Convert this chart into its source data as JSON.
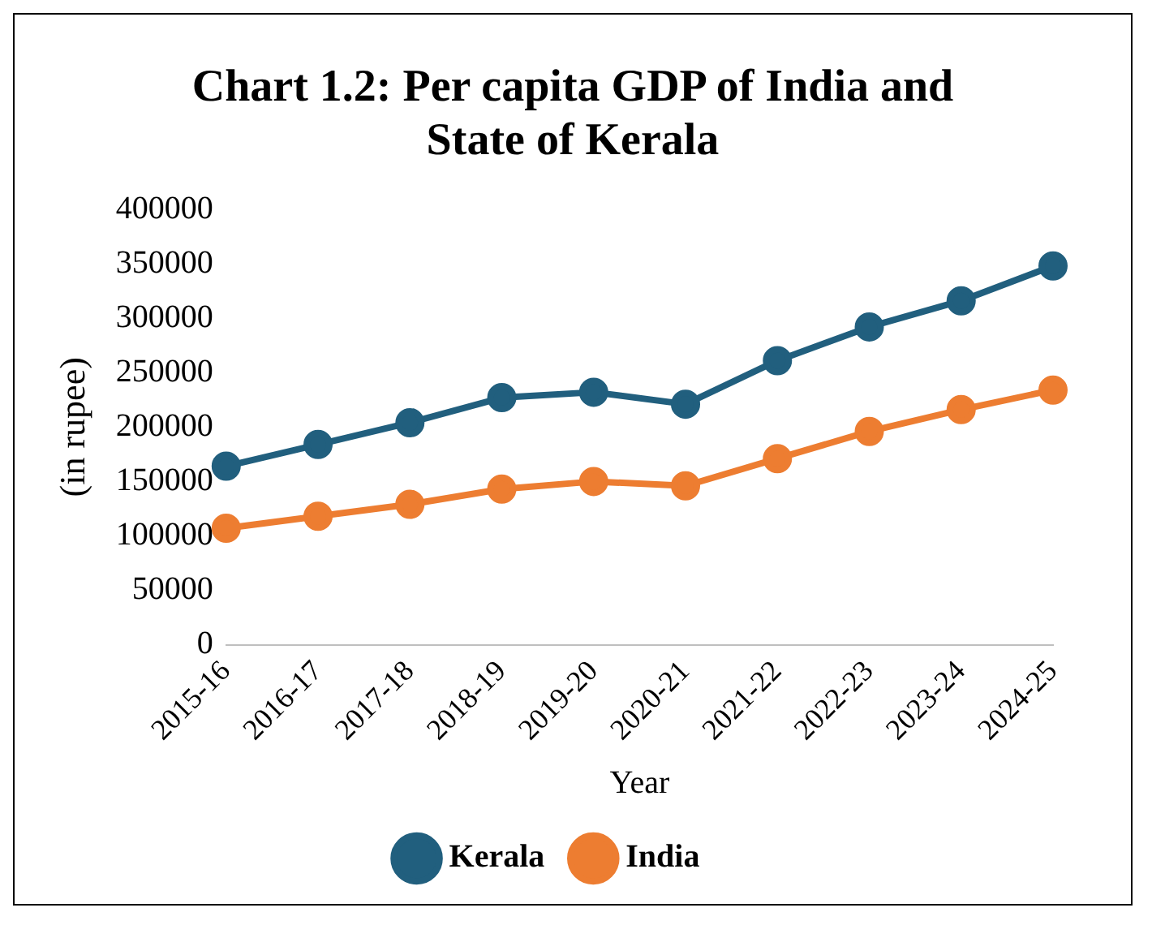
{
  "chart_data": {
    "type": "line",
    "title": "Chart 1.2: Per capita GDP of India and State of Kerala",
    "xlabel": "Year",
    "ylabel": "(in rupee)",
    "categories": [
      "2015-16",
      "2016-17",
      "2017-18",
      "2018-19",
      "2019-20",
      "2020-21",
      "2021-22",
      "2022-23",
      "2023-24",
      "2024-25"
    ],
    "series": [
      {
        "name": "Kerala",
        "color": "#215f7e",
        "values": [
          164000,
          184000,
          204000,
          227000,
          232000,
          221000,
          261000,
          292000,
          316000,
          348000
        ]
      },
      {
        "name": "India",
        "color": "#ed7d31",
        "values": [
          107000,
          118000,
          129000,
          143000,
          150000,
          146000,
          171000,
          196000,
          216000,
          234000
        ]
      }
    ],
    "ylim": [
      0,
      400000
    ],
    "yticks": [
      0,
      50000,
      100000,
      150000,
      200000,
      250000,
      300000,
      350000,
      400000
    ],
    "grid": false,
    "legend": "bottom",
    "marker": "circle",
    "line_style": "solid"
  }
}
